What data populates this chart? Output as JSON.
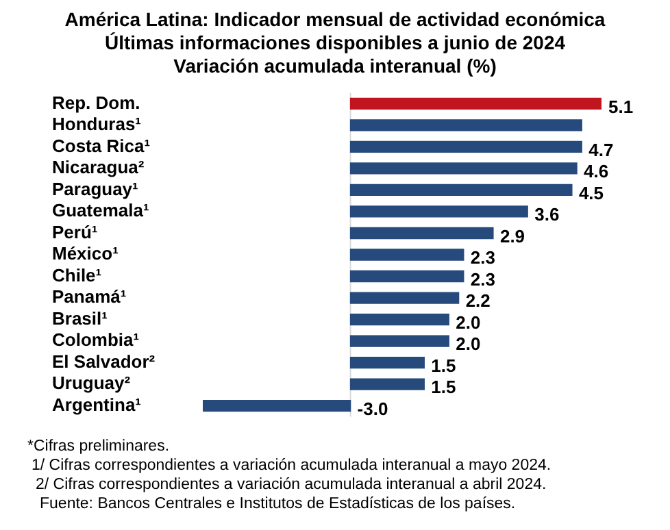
{
  "chart_data": {
    "type": "bar",
    "orientation": "horizontal",
    "title": "América Latina: Indicador mensual de actividad económica",
    "subtitle": "Últimas informaciones disponibles a junio de 2024\nVariación acumulada interanual (%)",
    "categories": [
      "Rep. Dom.",
      "Honduras¹",
      "Costa Rica¹",
      "Nicaragua²",
      "Paraguay¹",
      "Guatemala¹",
      "Perú¹",
      "México¹",
      "Chile¹",
      "Panamá¹",
      "Brasil¹",
      "Colombia¹",
      "El Salvador²",
      "Uruguay²",
      "Argentina¹"
    ],
    "values": [
      5.1,
      4.7,
      4.7,
      4.6,
      4.5,
      3.6,
      2.9,
      2.3,
      2.3,
      2.2,
      2.0,
      2.0,
      1.5,
      1.5,
      -3.0
    ],
    "value_labels": [
      "5.1",
      null,
      "4.7",
      "4.6",
      "4.5",
      "3.6",
      "2.9",
      "2.3",
      "2.3",
      "2.2",
      "2.0",
      "2.0",
      "1.5",
      "1.5",
      "-3.0"
    ],
    "colors": [
      "#c0141e",
      "#264a7c",
      "#264a7c",
      "#264a7c",
      "#264a7c",
      "#264a7c",
      "#264a7c",
      "#264a7c",
      "#264a7c",
      "#264a7c",
      "#264a7c",
      "#264a7c",
      "#264a7c",
      "#264a7c",
      "#264a7c"
    ],
    "tick_labels": "y",
    "legend": false,
    "ref_lines": [
      {
        "axis": "x",
        "value": 0,
        "color": "#d9d9d9"
      }
    ],
    "annotations": [
      "*Cifras preliminares.",
      "1/ Cifras correspondientes a variación acumulada interanual a mayo 2024.",
      "2/ Cifras correspondientes a variación acumulada interanual a abril 2024.",
      "Fuente: Bancos Centrales e Institutos de Estadísticas de los países."
    ]
  }
}
